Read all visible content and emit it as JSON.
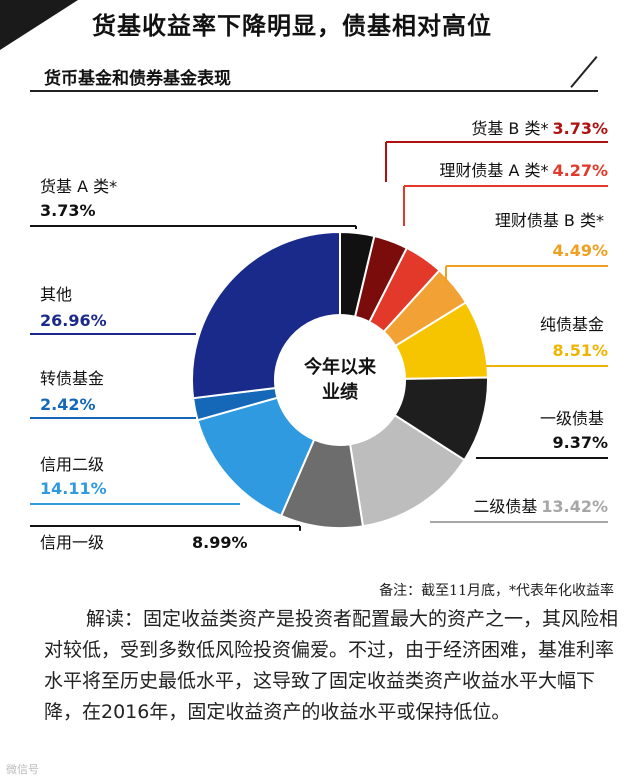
{
  "header": {
    "title": "货基收益率下降明显，债基相对高位",
    "subtitle": "货币基金和债券基金表现"
  },
  "chart_data": {
    "type": "pie",
    "variant": "donut",
    "center_label": [
      "今年以来",
      "业绩"
    ],
    "slices": [
      {
        "name": "货基 A 类*",
        "value": 3.73,
        "label": "3.73%",
        "color": "#111111",
        "value_color": "#111111",
        "side": "left"
      },
      {
        "name": "货基 B 类*",
        "value": 3.73,
        "label": "3.73%",
        "color": "#7a0c0c",
        "value_color": "#b01010",
        "side": "right"
      },
      {
        "name": "理财债基 A 类*",
        "value": 4.27,
        "label": "4.27%",
        "color": "#e3392a",
        "value_color": "#e3392a",
        "side": "right"
      },
      {
        "name": "理财债基 B 类*",
        "value": 4.49,
        "label": "4.49%",
        "color": "#f2a234",
        "value_color": "#f0a020",
        "side": "right"
      },
      {
        "name": "纯债基金",
        "value": 8.51,
        "label": "8.51%",
        "color": "#f7c500",
        "value_color": "#f0b400",
        "side": "right"
      },
      {
        "name": "一级债基",
        "value": 9.37,
        "label": "9.37%",
        "color": "#1e1e1e",
        "value_color": "#111111",
        "side": "right"
      },
      {
        "name": "二级债基",
        "value": 13.42,
        "label": "13.42%",
        "color": "#bdbdbd",
        "value_color": "#a6a6a6",
        "side": "right"
      },
      {
        "name": "信用一级",
        "value": 8.99,
        "label": "8.99%",
        "color": "#6d6d6d",
        "value_color": "#111111",
        "side": "left"
      },
      {
        "name": "信用二级",
        "value": 14.11,
        "label": "14.11%",
        "color": "#2f9ae0",
        "value_color": "#2f9ae0",
        "side": "left"
      },
      {
        "name": "转债基金",
        "value": 2.42,
        "label": "2.42%",
        "color": "#1568b8",
        "value_color": "#1568b8",
        "side": "left"
      },
      {
        "name": "其他",
        "value": 26.96,
        "label": "26.96%",
        "color": "#1a2a8a",
        "value_color": "#1a2a8a",
        "side": "left"
      }
    ]
  },
  "note": "备注：截至11月底，*代表年化收益率",
  "explanation": "解读：固定收益类资产是投资者配置最大的资产之一，其风险相对较低，受到多数低风险投资偏爱。不过，由于经济困难，基准利率水平将至历史最低水平，这导致了固定收益类资产收益水平大幅下降，在2016年，固定收益资产的收益水平或保持低位。",
  "watermark": "微信号"
}
